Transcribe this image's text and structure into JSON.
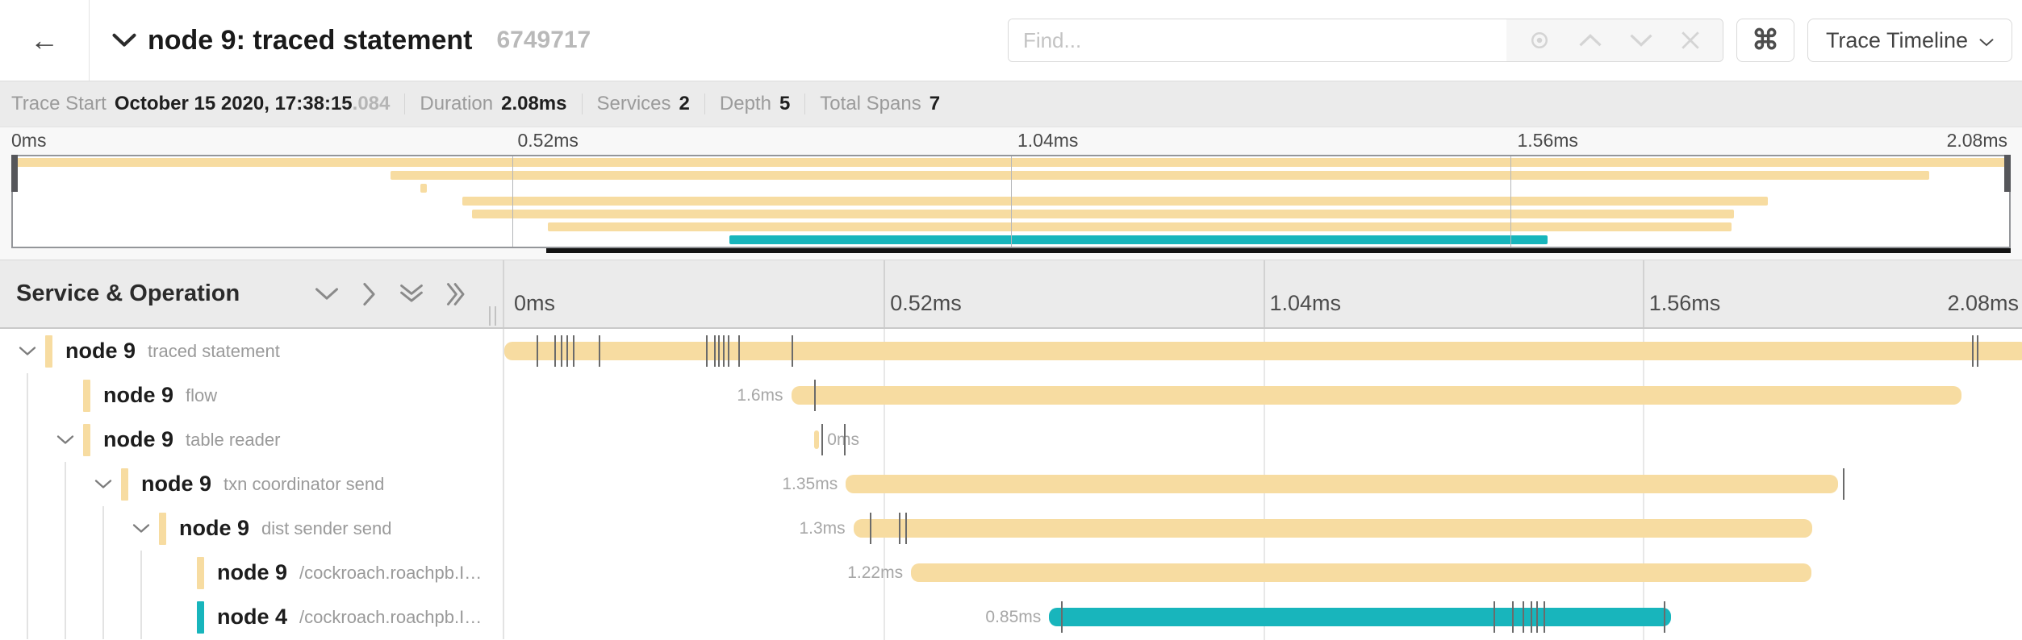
{
  "palette": {
    "span_cream": "#f7dca1",
    "span_teal": "#18b5bc",
    "tick_color": "#6b6b6b"
  },
  "header": {
    "title": "node 9: traced statement",
    "trace_id_short": "6749717",
    "find_placeholder": "Find...",
    "view_selector_label": "Trace Timeline"
  },
  "icons": {
    "back_arrow": "←",
    "command_key": "⌘"
  },
  "summary": {
    "items": [
      {
        "label": "Trace Start",
        "value": "October 15 2020, 17:38:15",
        "suffix": ".084"
      },
      {
        "label": "Duration",
        "value": "2.08ms"
      },
      {
        "label": "Services",
        "value": "2"
      },
      {
        "label": "Depth",
        "value": "5"
      },
      {
        "label": "Total Spans",
        "value": "7"
      }
    ]
  },
  "timeline": {
    "column_header": "Service & Operation",
    "trace_duration": "2.08ms",
    "axis_ticks": [
      {
        "label": "0ms",
        "pct": 0
      },
      {
        "label": "0.52ms",
        "pct": 25
      },
      {
        "label": "1.04ms",
        "pct": 50
      },
      {
        "label": "1.56ms",
        "pct": 75
      },
      {
        "label": "2.08ms",
        "pct": 100
      }
    ],
    "gridline_pcts": [
      25,
      50,
      75
    ]
  },
  "spans": [
    {
      "service": "node 9",
      "operation": "traced statement",
      "depth": 0,
      "has_children": true,
      "color": "cream",
      "start_pct": 0,
      "end_pct": 100.4,
      "duration_label": "",
      "label_side": "none",
      "ticks_pct": [
        2.1,
        3.3,
        3.7,
        4.1,
        4.5,
        6.2,
        13.3,
        13.8,
        14.1,
        14.4,
        14.7,
        15.4,
        18.9,
        96.7,
        97.0
      ]
    },
    {
      "service": "node 9",
      "operation": "flow",
      "depth": 1,
      "has_children": false,
      "color": "cream",
      "start_pct": 18.9,
      "end_pct": 96.0,
      "duration_label": "1.6ms",
      "label_side": "left",
      "ticks_pct": [
        20.4
      ]
    },
    {
      "service": "node 9",
      "operation": "table reader",
      "depth": 1,
      "has_children": true,
      "color": "cream",
      "start_pct": 20.4,
      "end_pct": 20.75,
      "duration_label": "0ms",
      "label_side": "right",
      "ticks_pct": [
        20.9,
        22.4
      ]
    },
    {
      "service": "node 9",
      "operation": "txn coordinator send",
      "depth": 2,
      "has_children": true,
      "color": "cream",
      "start_pct": 22.5,
      "end_pct": 87.9,
      "duration_label": "1.35ms",
      "label_side": "left",
      "ticks_pct": [
        88.2
      ]
    },
    {
      "service": "node 9",
      "operation": "dist sender send",
      "depth": 3,
      "has_children": true,
      "color": "cream",
      "start_pct": 23.0,
      "end_pct": 86.2,
      "duration_label": "1.3ms",
      "label_side": "left",
      "ticks_pct": [
        24.1,
        26.0,
        26.4
      ]
    },
    {
      "service": "node 9",
      "operation": "/cockroach.roachpb.I…",
      "depth": 4,
      "has_children": false,
      "color": "cream",
      "start_pct": 26.8,
      "end_pct": 86.1,
      "duration_label": "1.22ms",
      "label_side": "left",
      "ticks_pct": []
    },
    {
      "service": "node 4",
      "operation": "/cockroach.roachpb.I…",
      "depth": 4,
      "has_children": false,
      "color": "teal",
      "start_pct": 35.9,
      "end_pct": 76.9,
      "duration_label": "0.85ms",
      "label_side": "left",
      "ticks_pct": [
        36.7,
        65.2,
        66.4,
        67.1,
        67.6,
        68.0,
        68.5,
        76.4
      ]
    }
  ],
  "minimap": {
    "viewport_start_pct": 0,
    "viewport_end_pct": 100,
    "scroll_indicator_start_pct": 27
  }
}
